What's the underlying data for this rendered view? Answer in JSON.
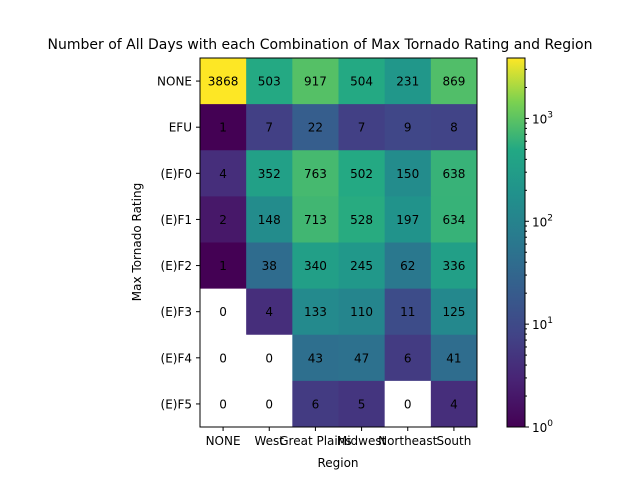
{
  "chart_data": {
    "type": "heatmap",
    "title": "Number of All Days with each Combination of Max Tornado Rating and Region",
    "xlabel": "Region",
    "ylabel": "Max Tornado Rating",
    "x_categories": [
      "NONE",
      "West",
      "Great Plains",
      "Midwest",
      "Northeast",
      "South"
    ],
    "y_categories": [
      "NONE",
      "EFU",
      "(E)F0",
      "(E)F1",
      "(E)F2",
      "(E)F3",
      "(E)F4",
      "(E)F5"
    ],
    "values": [
      [
        3868,
        503,
        917,
        504,
        231,
        869
      ],
      [
        1,
        7,
        22,
        7,
        9,
        8
      ],
      [
        4,
        352,
        763,
        502,
        150,
        638
      ],
      [
        2,
        148,
        713,
        528,
        197,
        634
      ],
      [
        1,
        38,
        340,
        245,
        62,
        336
      ],
      [
        0,
        4,
        133,
        110,
        11,
        125
      ],
      [
        0,
        0,
        43,
        47,
        6,
        41
      ],
      [
        0,
        0,
        6,
        5,
        0,
        4
      ]
    ],
    "color_scale": "log",
    "colormap": "viridis",
    "colorbar": {
      "range": [
        1,
        3868
      ],
      "ticks": [
        {
          "value": 1,
          "base": "10",
          "exp": "0"
        },
        {
          "value": 10,
          "base": "10",
          "exp": "1"
        },
        {
          "value": 100,
          "base": "10",
          "exp": "2"
        },
        {
          "value": 1000,
          "base": "10",
          "exp": "3"
        }
      ]
    },
    "zero_color": "#ffffff",
    "text_color": "#000000"
  }
}
